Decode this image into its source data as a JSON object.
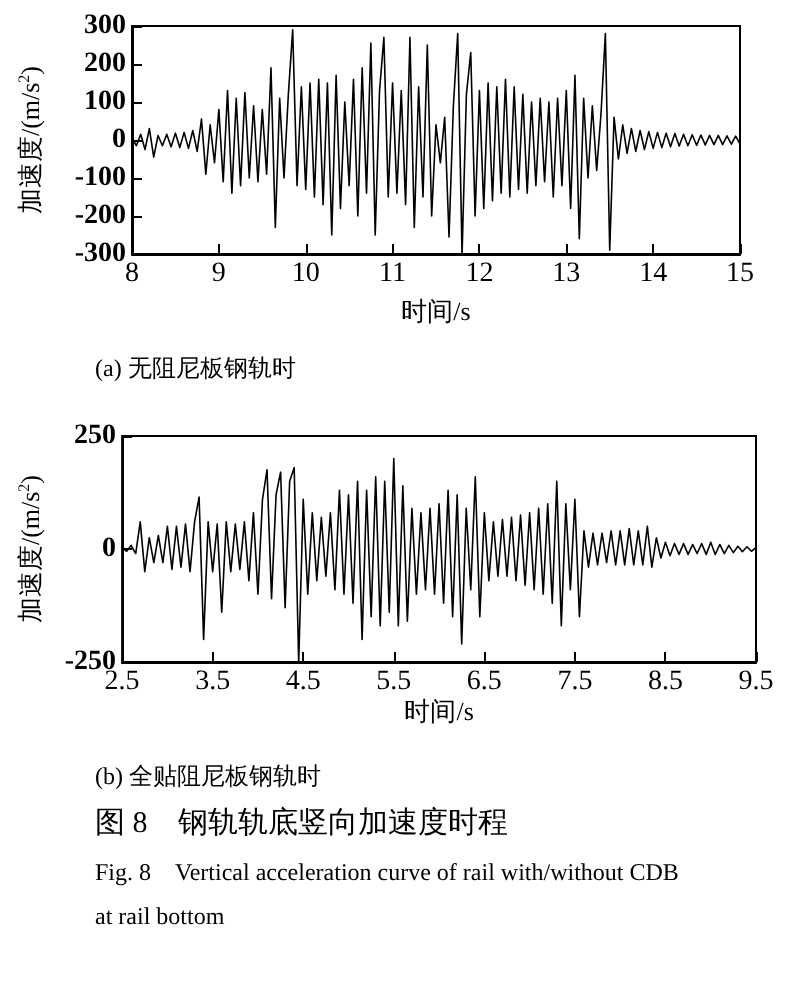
{
  "chart_data": [
    {
      "type": "line",
      "xlabel": "时间/s",
      "ylabel": "加速度/(m/s$^{2}$)",
      "annotations": [
        "(a) 无阻尼板钢轨时"
      ],
      "xlim": [
        8,
        15
      ],
      "xticks": [
        8,
        9,
        10,
        11,
        12,
        13,
        14,
        15
      ],
      "ylim": [
        -300,
        300
      ],
      "yticks": [
        -300,
        -200,
        -100,
        0,
        100,
        200,
        300
      ],
      "grid": false,
      "marker": "none",
      "line_style": "solid",
      "series": [
        {
          "color": "#000000",
          "x": [
            8,
            8.05,
            8.1,
            8.15,
            8.2,
            8.25,
            8.3,
            8.35,
            8.4,
            8.45,
            8.5,
            8.55,
            8.6,
            8.65,
            8.7,
            8.75,
            8.8,
            8.85,
            8.9,
            8.95,
            9,
            9.05,
            9.1,
            9.15,
            9.2,
            9.25,
            9.3,
            9.35,
            9.4,
            9.45,
            9.5,
            9.55,
            9.6,
            9.65,
            9.7,
            9.75,
            9.8,
            9.85,
            9.9,
            9.95,
            10,
            10.05,
            10.1,
            10.15,
            10.2,
            10.25,
            10.3,
            10.35,
            10.4,
            10.45,
            10.5,
            10.55,
            10.6,
            10.65,
            10.7,
            10.75,
            10.8,
            10.85,
            10.9,
            10.95,
            11,
            11.05,
            11.1,
            11.15,
            11.2,
            11.25,
            11.3,
            11.35,
            11.4,
            11.45,
            11.5,
            11.55,
            11.6,
            11.65,
            11.7,
            11.75,
            11.8,
            11.85,
            11.9,
            11.95,
            12,
            12.05,
            12.1,
            12.15,
            12.2,
            12.25,
            12.3,
            12.35,
            12.4,
            12.45,
            12.5,
            12.55,
            12.6,
            12.65,
            12.7,
            12.75,
            12.8,
            12.85,
            12.9,
            12.95,
            13,
            13.05,
            13.1,
            13.15,
            13.2,
            13.25,
            13.3,
            13.35,
            13.4,
            13.45,
            13.5,
            13.55,
            13.6,
            13.65,
            13.7,
            13.75,
            13.8,
            13.85,
            13.9,
            13.95,
            14,
            14.05,
            14.1,
            14.15,
            14.2,
            14.25,
            14.3,
            14.35,
            14.4,
            14.45,
            14.5,
            14.55,
            14.6,
            14.65,
            14.7,
            14.75,
            14.8,
            14.85,
            14.9,
            14.95,
            15
          ],
          "values": [
            5,
            -15,
            15,
            -25,
            30,
            -45,
            12,
            -15,
            15,
            -18,
            18,
            -20,
            20,
            -22,
            25,
            -30,
            55,
            -90,
            40,
            -60,
            80,
            -110,
            130,
            -140,
            110,
            -120,
            125,
            -100,
            90,
            -110,
            80,
            -90,
            190,
            -230,
            110,
            -100,
            120,
            290,
            -120,
            140,
            -130,
            150,
            -150,
            160,
            -170,
            150,
            -250,
            170,
            -180,
            100,
            -120,
            160,
            -200,
            190,
            -140,
            255,
            -250,
            130,
            270,
            -150,
            150,
            -140,
            130,
            -170,
            270,
            -230,
            140,
            -150,
            250,
            -200,
            40,
            -60,
            60,
            -255,
            90,
            280,
            -300,
            120,
            230,
            -200,
            130,
            -180,
            150,
            -160,
            140,
            -140,
            160,
            -150,
            140,
            -130,
            120,
            -140,
            100,
            -120,
            110,
            -110,
            100,
            -150,
            110,
            -120,
            130,
            -180,
            170,
            -260,
            110,
            -100,
            90,
            -80,
            70,
            280,
            -290,
            60,
            -50,
            40,
            -35,
            30,
            -30,
            25,
            -25,
            22,
            -22,
            20,
            -20,
            18,
            -18,
            17,
            -16,
            15,
            -15,
            14,
            -14,
            13,
            -13,
            12,
            -12,
            12,
            -12,
            11,
            -11,
            10,
            -10
          ]
        }
      ]
    },
    {
      "type": "line",
      "xlabel": "时间/s",
      "ylabel": "加速度/(m/s$^{2}$)",
      "annotations": [
        "(b) 全贴阻尼板钢轨时",
        "图 8　钢轨轨底竖向加速度时程",
        "Fig. 8　Vertical acceleration curve of rail with/without CDB at rail bottom"
      ],
      "xlim": [
        2.5,
        9.5
      ],
      "xticks": [
        2.5,
        3.5,
        4.5,
        5.5,
        6.5,
        7.5,
        8.5,
        9.5
      ],
      "ylim": [
        -250,
        250
      ],
      "yticks": [
        -250,
        0,
        250
      ],
      "grid": false,
      "marker": "none",
      "line_style": "solid",
      "series": [
        {
          "color": "#000000",
          "x": [
            2.5,
            2.55,
            2.6,
            2.65,
            2.7,
            2.75,
            2.8,
            2.85,
            2.9,
            2.95,
            3,
            3.05,
            3.1,
            3.15,
            3.2,
            3.25,
            3.3,
            3.35,
            3.4,
            3.45,
            3.5,
            3.55,
            3.6,
            3.65,
            3.7,
            3.75,
            3.8,
            3.85,
            3.9,
            3.95,
            4,
            4.05,
            4.1,
            4.15,
            4.2,
            4.25,
            4.3,
            4.35,
            4.4,
            4.45,
            4.5,
            4.55,
            4.6,
            4.65,
            4.7,
            4.75,
            4.8,
            4.85,
            4.9,
            4.95,
            5,
            5.05,
            5.1,
            5.15,
            5.2,
            5.25,
            5.3,
            5.35,
            5.4,
            5.45,
            5.5,
            5.55,
            5.6,
            5.65,
            5.7,
            5.75,
            5.8,
            5.85,
            5.9,
            5.95,
            6,
            6.05,
            6.1,
            6.15,
            6.2,
            6.25,
            6.3,
            6.35,
            6.4,
            6.45,
            6.5,
            6.55,
            6.6,
            6.65,
            6.7,
            6.75,
            6.8,
            6.85,
            6.9,
            6.95,
            7,
            7.05,
            7.1,
            7.15,
            7.2,
            7.25,
            7.3,
            7.35,
            7.4,
            7.45,
            7.5,
            7.55,
            7.6,
            7.65,
            7.7,
            7.75,
            7.8,
            7.85,
            7.9,
            7.95,
            8,
            8.05,
            8.1,
            8.15,
            8.2,
            8.25,
            8.3,
            8.35,
            8.4,
            8.45,
            8.5,
            8.55,
            8.6,
            8.65,
            8.7,
            8.75,
            8.8,
            8.85,
            8.9,
            8.95,
            9,
            9.05,
            9.1,
            9.15,
            9.2,
            9.25,
            9.3,
            9.35,
            9.4,
            9.45,
            9.5
          ],
          "values": [
            3,
            -5,
            8,
            -10,
            60,
            -50,
            25,
            -30,
            30,
            -30,
            50,
            -45,
            50,
            -40,
            55,
            -50,
            60,
            115,
            -200,
            60,
            -50,
            55,
            -140,
            60,
            -50,
            55,
            -45,
            60,
            -70,
            80,
            -100,
            110,
            175,
            -110,
            120,
            170,
            -130,
            150,
            180,
            -250,
            110,
            -100,
            80,
            -70,
            70,
            -60,
            80,
            -90,
            130,
            -100,
            120,
            -120,
            150,
            -200,
            130,
            -150,
            160,
            -170,
            150,
            -140,
            200,
            -170,
            140,
            -160,
            90,
            -100,
            80,
            -90,
            90,
            -100,
            100,
            -120,
            130,
            -150,
            120,
            -210,
            90,
            -90,
            160,
            -150,
            80,
            -70,
            60,
            -60,
            65,
            -60,
            70,
            -70,
            75,
            -80,
            80,
            -90,
            90,
            -100,
            100,
            -120,
            150,
            -170,
            100,
            -90,
            110,
            -150,
            40,
            -40,
            35,
            -35,
            35,
            -30,
            40,
            -35,
            40,
            -35,
            45,
            -35,
            40,
            -35,
            50,
            -40,
            25,
            -20,
            15,
            -15,
            12,
            -12,
            12,
            -12,
            10,
            -10,
            12,
            -12,
            15,
            -12,
            10,
            -10,
            8,
            -8,
            6,
            -6,
            5,
            -5,
            3
          ]
        }
      ]
    }
  ]
}
